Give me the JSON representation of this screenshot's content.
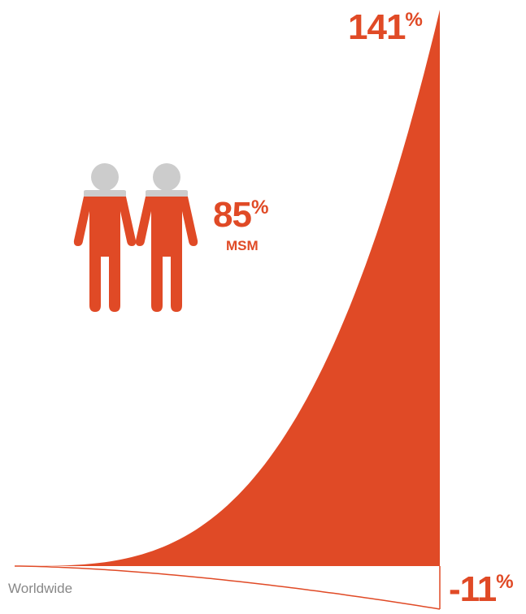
{
  "colors": {
    "accent": "#e04a26",
    "person_head": "#cccccc",
    "label_gray": "#888888"
  },
  "icon": "two-men-holding-hands-icon",
  "stat": {
    "value": "85",
    "unit": "%",
    "label": "MSM"
  },
  "chart_data": {
    "type": "area",
    "series": [
      {
        "label": "Worldwide",
        "value_text": "-11",
        "unit": "%",
        "end_value": -11
      },
      {
        "value_text": "141",
        "unit": "%",
        "end_value": 141
      }
    ]
  }
}
